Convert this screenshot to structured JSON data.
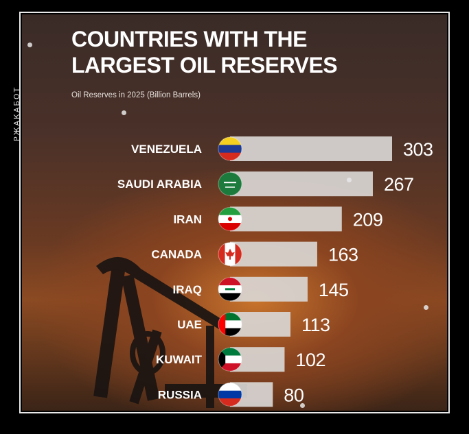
{
  "watermark": "РЖАКАБОТ",
  "colors": {
    "bar": "#d9d6d4",
    "label": "#ffffff",
    "value": "#ffffff"
  },
  "chart_data": {
    "type": "bar",
    "orientation": "horizontal",
    "title": "COUNTRIES WITH THE LARGEST OIL RESERVES",
    "subtitle": "Oil Reserves in 2025 (Billion Barrels)",
    "categories": [
      "VENEZUELA",
      "SAUDI ARABIA",
      "IRAN",
      "CANADA",
      "IRAQ",
      "UAE",
      "KUWAIT",
      "RUSSIA"
    ],
    "values": [
      303,
      267,
      209,
      163,
      145,
      113,
      102,
      80
    ],
    "flags": [
      "venezuela-flag-icon",
      "saudi-arabia-flag-icon",
      "iran-flag-icon",
      "canada-flag-icon",
      "iraq-flag-icon",
      "uae-flag-icon",
      "kuwait-flag-icon",
      "russia-flag-icon"
    ],
    "xlim": [
      0,
      303
    ],
    "grid": false
  }
}
